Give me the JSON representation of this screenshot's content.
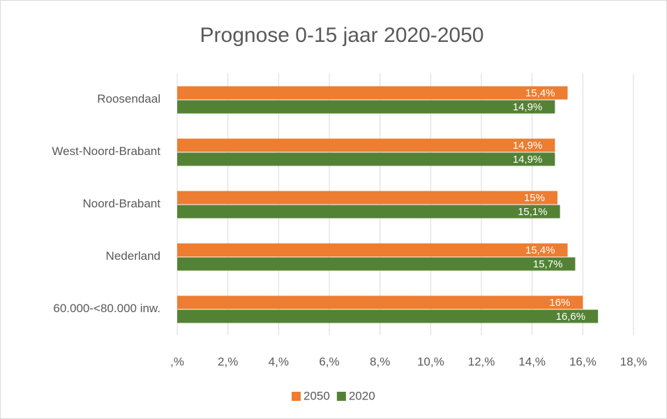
{
  "chart_data": {
    "type": "bar",
    "orientation": "horizontal",
    "title": "Prognose 0-15 jaar 2020-2050",
    "categories": [
      "Roosendaal",
      "West-Noord-Brabant",
      "Noord-Brabant",
      "Nederland",
      "60.000-<80.000 inw."
    ],
    "series": [
      {
        "name": "2050",
        "color": "#ed7d31",
        "values": [
          15.4,
          14.9,
          15,
          15.4,
          16
        ],
        "value_labels": [
          "15,4%",
          "14,9%",
          "15%",
          "15,4%",
          "16%"
        ]
      },
      {
        "name": "2020",
        "color": "#548235",
        "values": [
          14.9,
          14.9,
          15.1,
          15.7,
          16.6
        ],
        "value_labels": [
          "14,9%",
          "14,9%",
          "15,1%",
          "15,7%",
          "16,6%"
        ]
      }
    ],
    "xlim": [
      0,
      18
    ],
    "xticks": [
      {
        "value": 0,
        "label": ",%"
      },
      {
        "value": 2,
        "label": "2,%"
      },
      {
        "value": 4,
        "label": "4,%"
      },
      {
        "value": 6,
        "label": "6,%"
      },
      {
        "value": 8,
        "label": "8,%"
      },
      {
        "value": 10,
        "label": "10,%"
      },
      {
        "value": 12,
        "label": "12,%"
      },
      {
        "value": 14,
        "label": "14,%"
      },
      {
        "value": 16,
        "label": "16,%"
      },
      {
        "value": 18,
        "label": "18,%"
      }
    ],
    "grid": true,
    "legend": "bottom"
  }
}
